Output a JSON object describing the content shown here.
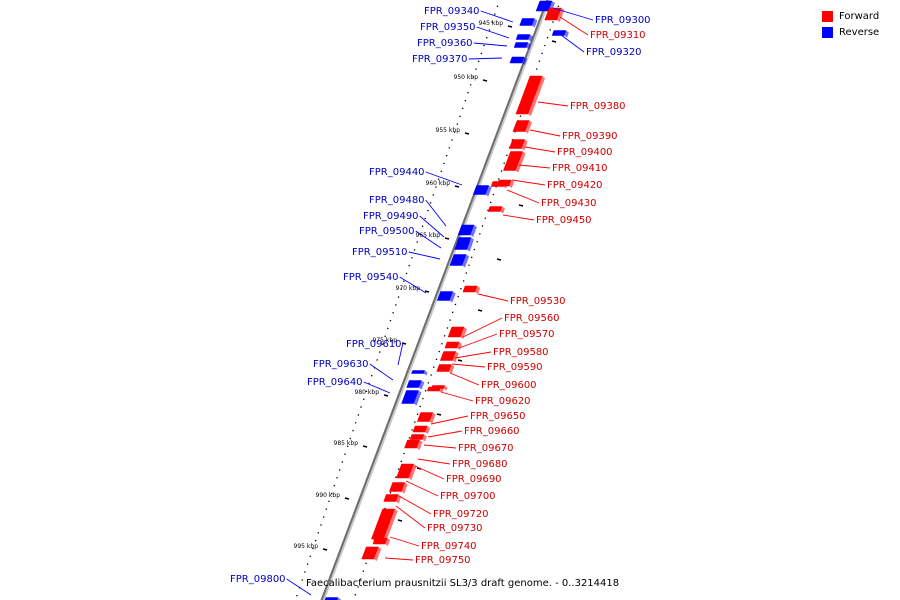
{
  "caption": "Faecalibacterium prausnitzii SL3/3 draft genome. - 0..3214418",
  "legend": [
    {
      "label": "Forward",
      "color": "#ff0000"
    },
    {
      "label": "Reverse",
      "color": "#0000ff"
    }
  ],
  "colors": {
    "forward": "#ff0000",
    "reverse": "#0000ff",
    "forward_label": "#cc0000",
    "reverse_label": "#0000bb"
  },
  "scale_labels": [
    "945 kbp",
    "950 kbp",
    "955 kbp",
    "960 kbp",
    "965 kbp",
    "970 kbp",
    "975 kbp",
    "980 kbp",
    "985 kbp",
    "990 kbp",
    "995 kbp"
  ],
  "genes": [
    {
      "name": "FPR_09300",
      "strand": "reverse"
    },
    {
      "name": "FPR_09310",
      "strand": "forward"
    },
    {
      "name": "FPR_09320",
      "strand": "reverse"
    },
    {
      "name": "FPR_09340",
      "strand": "reverse"
    },
    {
      "name": "FPR_09350",
      "strand": "reverse"
    },
    {
      "name": "FPR_09360",
      "strand": "reverse"
    },
    {
      "name": "FPR_09370",
      "strand": "reverse"
    },
    {
      "name": "FPR_09380",
      "strand": "forward"
    },
    {
      "name": "FPR_09390",
      "strand": "forward"
    },
    {
      "name": "FPR_09400",
      "strand": "forward"
    },
    {
      "name": "FPR_09410",
      "strand": "forward"
    },
    {
      "name": "FPR_09420",
      "strand": "forward"
    },
    {
      "name": "FPR_09430",
      "strand": "forward"
    },
    {
      "name": "FPR_09440",
      "strand": "reverse"
    },
    {
      "name": "FPR_09450",
      "strand": "forward"
    },
    {
      "name": "FPR_09480",
      "strand": "reverse"
    },
    {
      "name": "FPR_09490",
      "strand": "reverse"
    },
    {
      "name": "FPR_09500",
      "strand": "reverse"
    },
    {
      "name": "FPR_09510",
      "strand": "reverse"
    },
    {
      "name": "FPR_09530",
      "strand": "forward"
    },
    {
      "name": "FPR_09540",
      "strand": "reverse"
    },
    {
      "name": "FPR_09560",
      "strand": "forward"
    },
    {
      "name": "FPR_09570",
      "strand": "forward"
    },
    {
      "name": "FPR_09580",
      "strand": "forward"
    },
    {
      "name": "FPR_09590",
      "strand": "forward"
    },
    {
      "name": "FPR_09600",
      "strand": "forward"
    },
    {
      "name": "FPR_09610",
      "strand": "reverse"
    },
    {
      "name": "FPR_09620",
      "strand": "forward"
    },
    {
      "name": "FPR_09630",
      "strand": "reverse"
    },
    {
      "name": "FPR_09640",
      "strand": "reverse"
    },
    {
      "name": "FPR_09650",
      "strand": "forward"
    },
    {
      "name": "FPR_09660",
      "strand": "forward"
    },
    {
      "name": "FPR_09670",
      "strand": "forward"
    },
    {
      "name": "FPR_09680",
      "strand": "forward"
    },
    {
      "name": "FPR_09690",
      "strand": "forward"
    },
    {
      "name": "FPR_09700",
      "strand": "forward"
    },
    {
      "name": "FPR_09720",
      "strand": "forward"
    },
    {
      "name": "FPR_09730",
      "strand": "forward"
    },
    {
      "name": "FPR_09740",
      "strand": "forward"
    },
    {
      "name": "FPR_09750",
      "strand": "forward"
    },
    {
      "name": "FPR_09800",
      "strand": "reverse"
    }
  ]
}
